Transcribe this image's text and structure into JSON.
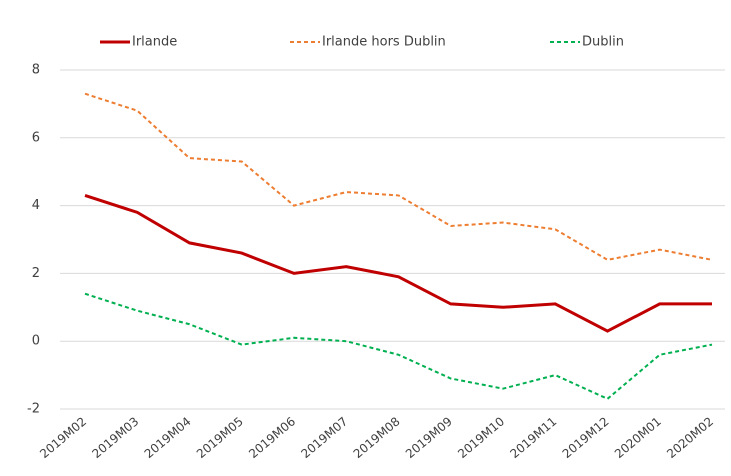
{
  "chart_data": {
    "type": "line",
    "categories": [
      "2019M02",
      "2019M03",
      "2019M04",
      "2019M05",
      "2019M06",
      "2019M07",
      "2019M08",
      "2019M09",
      "2019M10",
      "2019M11",
      "2019M12",
      "2020M01",
      "2020M02"
    ],
    "series": [
      {
        "name": "Irlande",
        "color": "#c00000",
        "style": "solid",
        "values": [
          4.3,
          3.8,
          2.9,
          2.6,
          2.0,
          2.2,
          1.9,
          1.1,
          1.0,
          1.1,
          0.3,
          1.1,
          1.1
        ]
      },
      {
        "name": "Irlande hors Dublin",
        "color": "#ed7d31",
        "style": "dashed",
        "values": [
          7.3,
          6.8,
          5.4,
          5.3,
          4.0,
          4.4,
          4.3,
          3.4,
          3.5,
          3.3,
          2.4,
          2.7,
          2.4
        ]
      },
      {
        "name": "Dublin",
        "color": "#00b050",
        "style": "dashed",
        "values": [
          1.4,
          0.9,
          0.5,
          -0.1,
          0.1,
          0.0,
          -0.4,
          -1.1,
          -1.4,
          -1.0,
          -1.7,
          -0.4,
          -0.1
        ]
      }
    ],
    "ylim": [
      -2,
      8
    ],
    "yticks": [
      -2,
      0,
      2,
      4,
      6,
      8
    ],
    "grid": true,
    "legend": "top"
  }
}
